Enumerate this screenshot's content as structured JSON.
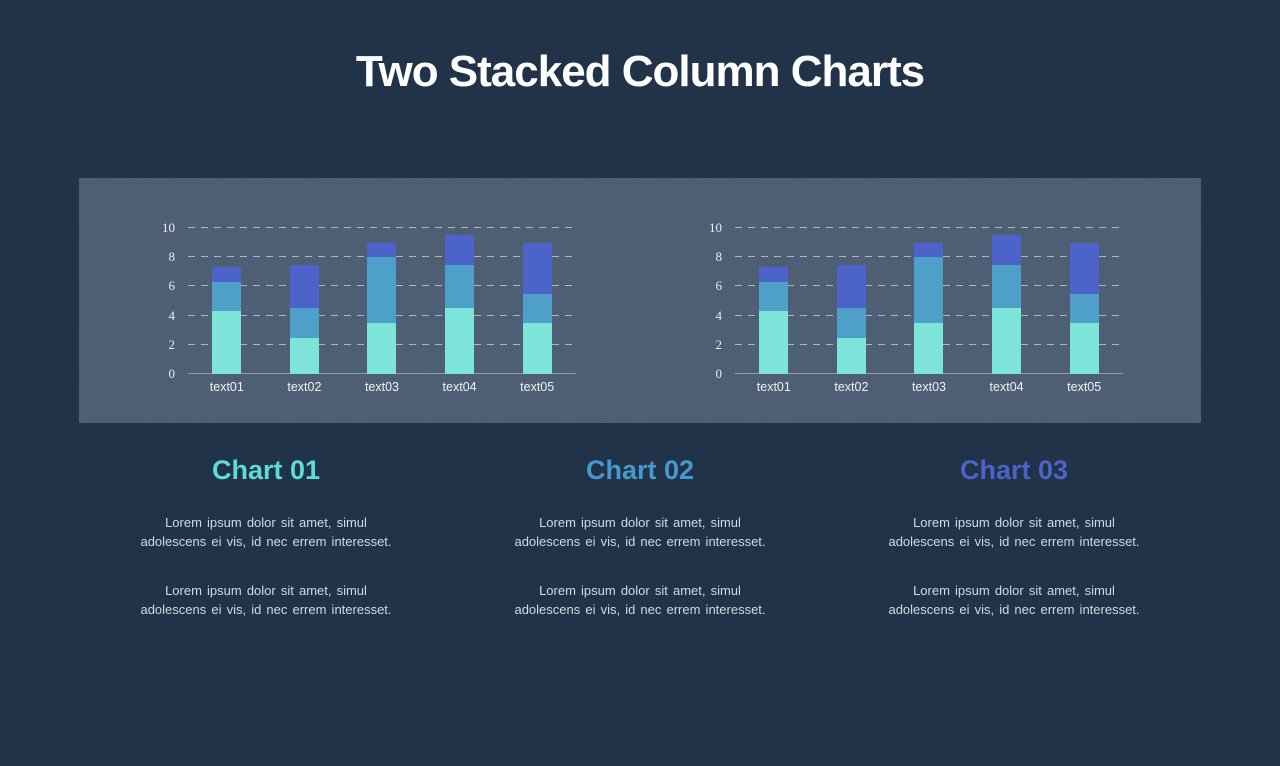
{
  "page": {
    "title": "Two Stacked Column Charts",
    "colors": {
      "background": "#203349",
      "panel": "#4d5d73",
      "title_text": "#ffffff",
      "body_text": "#d3d9df",
      "axis_text": "#e9edf1",
      "gridline": "#ffffff",
      "baseline": "#c3cbd6"
    }
  },
  "chart_data": [
    {
      "type": "bar",
      "subtype": "stacked-column",
      "title": "",
      "xlabel": "",
      "ylabel": "",
      "categories": [
        "text01",
        "text02",
        "text03",
        "text04",
        "text05"
      ],
      "series": [
        {
          "name": "bottom",
          "color": "#7de4da",
          "values": [
            4.3,
            2.5,
            3.5,
            4.5,
            3.5
          ]
        },
        {
          "name": "middle",
          "color": "#4fa0c8",
          "values": [
            2.0,
            2.0,
            4.5,
            3.0,
            2.0
          ]
        },
        {
          "name": "top",
          "color": "#4c63cc",
          "values": [
            1.0,
            3.0,
            1.0,
            2.0,
            3.5
          ]
        }
      ],
      "stack_totals": [
        7.3,
        7.5,
        9.0,
        9.5,
        9.0
      ],
      "ylim": [
        0,
        10
      ],
      "yticks": [
        0,
        2,
        4,
        6,
        8,
        10
      ],
      "grid": "dashed-horizontal",
      "legend": "none"
    },
    {
      "type": "bar",
      "subtype": "stacked-column",
      "title": "",
      "xlabel": "",
      "ylabel": "",
      "categories": [
        "text01",
        "text02",
        "text03",
        "text04",
        "text05"
      ],
      "series": [
        {
          "name": "bottom",
          "color": "#7de4da",
          "values": [
            4.3,
            2.5,
            3.5,
            4.5,
            3.5
          ]
        },
        {
          "name": "middle",
          "color": "#4fa0c8",
          "values": [
            2.0,
            2.0,
            4.5,
            3.0,
            2.0
          ]
        },
        {
          "name": "top",
          "color": "#4c63cc",
          "values": [
            1.0,
            3.0,
            1.0,
            2.0,
            3.5
          ]
        }
      ],
      "stack_totals": [
        7.3,
        7.5,
        9.0,
        9.5,
        9.0
      ],
      "ylim": [
        0,
        10
      ],
      "yticks": [
        0,
        2,
        4,
        6,
        8,
        10
      ],
      "grid": "dashed-horizontal",
      "legend": "none"
    }
  ],
  "sections": [
    {
      "title": "Chart 01",
      "title_color": "#5fdcd3",
      "paragraphs": [
        "Lorem ipsum dolor sit amet, simul\nadolescens ei vis, id nec errem interesset.",
        "Lorem ipsum dolor sit amet, simul\nadolescens ei vis, id nec errem interesset."
      ]
    },
    {
      "title": "Chart 02",
      "title_color": "#4599cb",
      "paragraphs": [
        "Lorem ipsum dolor sit amet, simul\nadolescens ei vis, id nec errem interesset.",
        "Lorem ipsum dolor sit amet, simul\nadolescens ei vis, id nec errem interesset."
      ]
    },
    {
      "title": "Chart 03",
      "title_color": "#4c63ca",
      "paragraphs": [
        "Lorem ipsum dolor sit amet, simul\nadolescens ei vis, id nec errem interesset.",
        "Lorem ipsum dolor sit amet, simul\nadolescens ei vis, id nec errem interesset."
      ]
    }
  ]
}
